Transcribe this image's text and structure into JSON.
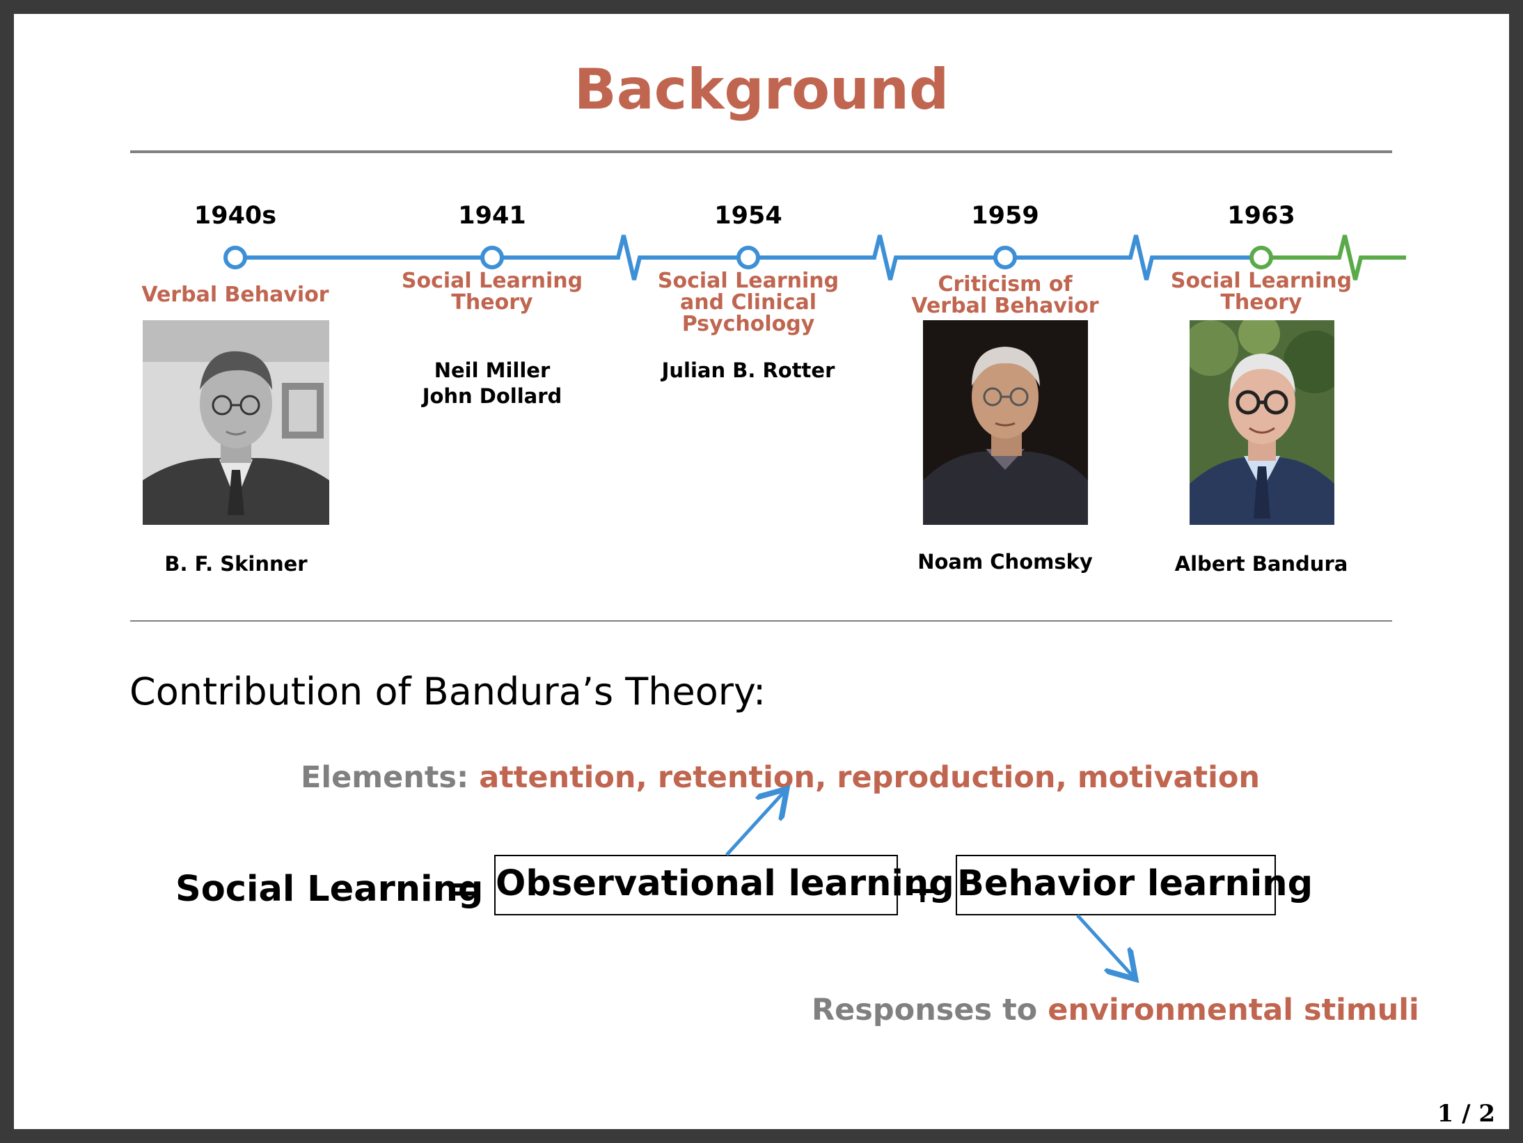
{
  "title": "Background",
  "timeline": [
    {
      "year": "1940s",
      "topic": [
        "Verbal Behavior"
      ],
      "people": [
        "B. F. Skinner"
      ]
    },
    {
      "year": "1941",
      "topic": [
        "Social Learning",
        "Theory"
      ],
      "people": [
        "Neil Miller",
        "John Dollard"
      ]
    },
    {
      "year": "1954",
      "topic": [
        "Social Learning",
        "and Clinical Psychology"
      ],
      "people": [
        "Julian B. Rotter"
      ]
    },
    {
      "year": "1959",
      "topic": [
        "Criticism of",
        "Verbal Behavior"
      ],
      "people": [
        "Noam Chomsky"
      ]
    },
    {
      "year": "1963",
      "topic": [
        "Social Learning",
        "Theory"
      ],
      "people": [
        "Albert Bandura"
      ]
    }
  ],
  "colors": {
    "accent": "#c0654f",
    "timeline_blue": "#3d8fd6",
    "timeline_green": "#5aaa4a",
    "muted_gray": "#808080"
  },
  "section": {
    "heading": "Contribution of Bandura’s Theory:",
    "elements_label": "Elements:",
    "elements_list": "attention, retention, reproduction, motivation",
    "equation": {
      "lhs": "Social Learning",
      "equals": "=",
      "term1": "Observational learning",
      "plus": "+",
      "term2": "Behavior learning"
    },
    "responses_label": "Responses to",
    "responses_target": "environmental stimuli"
  },
  "page_number": "1 / 2"
}
